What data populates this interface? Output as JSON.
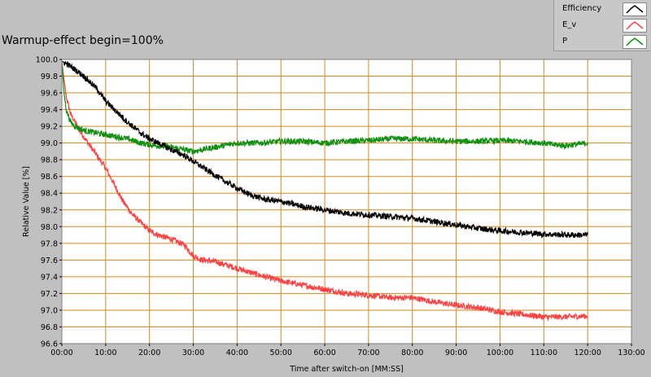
{
  "window": {
    "title": "Warmup-effect begin=100%"
  },
  "legend": {
    "items": [
      {
        "label": "Efficiency",
        "color": "#000000",
        "icon": "line-swatch-icon"
      },
      {
        "label": "E_v",
        "color": "#ff4040",
        "icon": "line-swatch-icon"
      },
      {
        "label": "P",
        "color": "#109010",
        "icon": "line-swatch-icon"
      }
    ]
  },
  "colors": {
    "plot_bg": "#ffffff",
    "grid": "#d08a20",
    "frame": "#808080",
    "page_bg": "#c0c0c0"
  },
  "chart_data": {
    "type": "line",
    "title": "Warmup-effect begin=100%",
    "xlabel": "Time after switch-on [MM:SS]",
    "ylabel": "Relative Value [%]",
    "xlim": [
      0,
      130
    ],
    "ylim": [
      96.6,
      100.0
    ],
    "grid": true,
    "legend_position": "top-right",
    "x_ticks": [
      0,
      10,
      20,
      30,
      40,
      50,
      60,
      70,
      80,
      90,
      100,
      110,
      120,
      130
    ],
    "x_tick_labels": [
      "00:00",
      "10:00",
      "20:00",
      "30:00",
      "40:00",
      "50:00",
      "60:00",
      "70:00",
      "80:00",
      "90:00",
      "100:00",
      "110:00",
      "120:00",
      "130:00"
    ],
    "y_ticks": [
      96.6,
      96.8,
      97.0,
      97.2,
      97.4,
      97.6,
      97.8,
      98.0,
      98.2,
      98.4,
      98.6,
      98.8,
      99.0,
      99.2,
      99.4,
      99.6,
      99.8,
      100.0
    ],
    "y_tick_labels": [
      "96.6",
      "96.8",
      "97.0",
      "97.2",
      "97.4",
      "97.6",
      "97.8",
      "98.0",
      "98.2",
      "98.4",
      "98.6",
      "98.8",
      "99.0",
      "99.2",
      "99.4",
      "99.6",
      "99.8",
      "100.0"
    ],
    "series": [
      {
        "name": "Efficiency",
        "color": "#000000",
        "x": [
          0,
          1,
          3,
          5,
          8,
          10,
          12,
          15,
          18,
          20,
          22,
          25,
          28,
          30,
          33,
          36,
          40,
          43,
          46,
          50,
          55,
          60,
          65,
          70,
          75,
          80,
          85,
          90,
          95,
          100,
          105,
          110,
          115,
          120
        ],
        "y": [
          99.98,
          99.95,
          99.88,
          99.8,
          99.65,
          99.5,
          99.4,
          99.25,
          99.12,
          99.05,
          99.0,
          98.92,
          98.85,
          98.78,
          98.68,
          98.58,
          98.46,
          98.38,
          98.33,
          98.3,
          98.24,
          98.2,
          98.16,
          98.14,
          98.12,
          98.1,
          98.06,
          98.02,
          97.98,
          97.95,
          97.93,
          97.91,
          97.9,
          97.9
        ]
      },
      {
        "name": "E_v",
        "color": "#ff4040",
        "x": [
          0,
          0.5,
          1,
          2,
          4,
          6,
          8,
          10,
          12,
          14,
          16,
          18,
          20,
          22,
          25,
          28,
          30,
          32,
          35,
          40,
          45,
          50,
          55,
          60,
          65,
          70,
          75,
          80,
          85,
          90,
          95,
          100,
          105,
          110,
          115,
          120
        ],
        "y": [
          99.98,
          99.75,
          99.55,
          99.35,
          99.15,
          99.0,
          98.85,
          98.7,
          98.5,
          98.3,
          98.15,
          98.05,
          97.95,
          97.9,
          97.85,
          97.78,
          97.65,
          97.6,
          97.58,
          97.5,
          97.42,
          97.35,
          97.3,
          97.25,
          97.2,
          97.18,
          97.15,
          97.15,
          97.1,
          97.06,
          97.03,
          96.98,
          96.95,
          96.92,
          96.92,
          96.93
        ]
      },
      {
        "name": "P",
        "color": "#109010",
        "x": [
          0,
          0.5,
          1,
          2,
          3,
          5,
          8,
          10,
          12,
          15,
          18,
          20,
          25,
          30,
          35,
          40,
          45,
          50,
          55,
          60,
          65,
          70,
          75,
          80,
          85,
          90,
          95,
          100,
          105,
          110,
          112,
          115,
          120
        ],
        "y": [
          99.98,
          99.6,
          99.4,
          99.25,
          99.2,
          99.15,
          99.12,
          99.1,
          99.08,
          99.05,
          99.0,
          98.98,
          98.95,
          98.9,
          98.95,
          99.0,
          99.0,
          99.02,
          99.02,
          99.0,
          99.02,
          99.03,
          99.05,
          99.05,
          99.03,
          99.02,
          99.02,
          99.03,
          99.02,
          99.0,
          98.98,
          98.97,
          99.0
        ]
      }
    ]
  }
}
